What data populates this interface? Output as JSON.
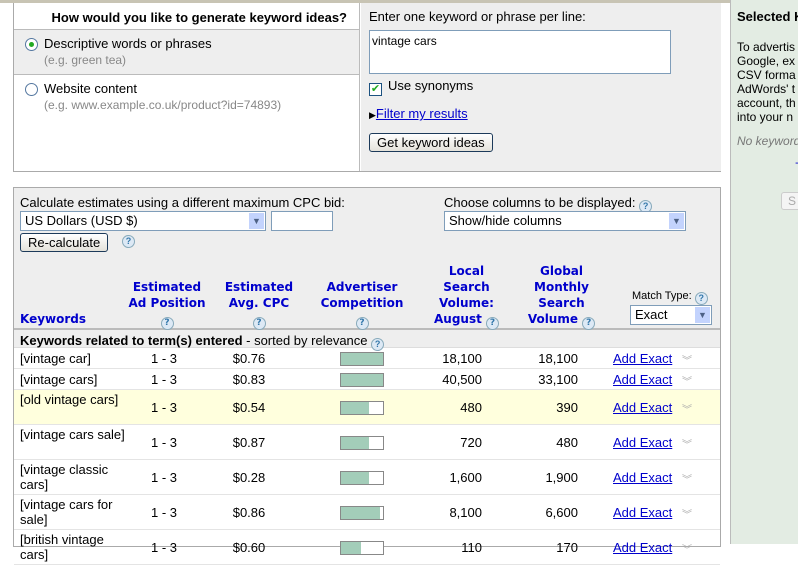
{
  "generate": {
    "title": "How would you like to generate keyword ideas?",
    "options": [
      {
        "label": "Descriptive words or phrases",
        "hint": "(e.g. green tea)",
        "selected": true
      },
      {
        "label": "Website content",
        "hint": "(e.g. www.example.co.uk/product?id=74893)",
        "selected": false
      }
    ],
    "enter_label": "Enter one keyword or phrase per line:",
    "keywords_value": "vintage cars",
    "use_synonyms": "Use synonyms",
    "use_synonyms_checked": true,
    "filter_link": "Filter my results",
    "get_ideas": "Get keyword ideas"
  },
  "estimates": {
    "cpc_label": "Calculate estimates using a different maximum CPC bid:",
    "currency": "US Dollars (USD $)",
    "bid_value": "",
    "recalc": "Re-calculate",
    "columns_label": "Choose columns to be displayed:",
    "columns_select": "Show/hide columns"
  },
  "table": {
    "headers": {
      "keywords": "Keywords",
      "position": [
        "Estimated",
        "Ad Position"
      ],
      "cpc": [
        "Estimated",
        "Avg. CPC"
      ],
      "competition": [
        "Advertiser",
        "Competition"
      ],
      "local": [
        "Local",
        "Search",
        "Volume:",
        "August"
      ],
      "global": [
        "Global",
        "Monthly",
        "Search",
        "Volume"
      ],
      "match_label": "Match Type:",
      "match_value": "Exact"
    },
    "section_bold": "Keywords related to term(s) entered",
    "section_rest": " - sorted by relevance",
    "competition_color": "#a3cdb9",
    "highlight_color": "#ffffdd",
    "rows": [
      {
        "keyword": "[vintage car]",
        "position": "1 - 3",
        "cpc": "$0.76",
        "competition": 1.0,
        "local": "18,100",
        "global": "18,100",
        "action": "Add Exact"
      },
      {
        "keyword": "[vintage cars]",
        "position": "1 - 3",
        "cpc": "$0.83",
        "competition": 1.0,
        "local": "40,500",
        "global": "33,100",
        "action": "Add Exact"
      },
      {
        "keyword": "[old vintage cars]",
        "position": "1 - 3",
        "cpc": "$0.54",
        "competition": 0.67,
        "local": "480",
        "global": "390",
        "action": "Add Exact",
        "highlighted": true
      },
      {
        "keyword": "[vintage cars sale]",
        "position": "1 - 3",
        "cpc": "$0.87",
        "competition": 0.67,
        "local": "720",
        "global": "480",
        "action": "Add Exact"
      },
      {
        "keyword": "[vintage classic cars]",
        "position": "1 - 3",
        "cpc": "$0.28",
        "competition": 0.67,
        "local": "1,600",
        "global": "1,900",
        "action": "Add Exact"
      },
      {
        "keyword": "[vintage cars for sale]",
        "position": "1 - 3",
        "cpc": "$0.86",
        "competition": 0.93,
        "local": "8,100",
        "global": "6,600",
        "action": "Add Exact"
      },
      {
        "keyword": "[british vintage cars]",
        "position": "1 - 3",
        "cpc": "$0.60",
        "competition": 0.47,
        "local": "110",
        "global": "170",
        "action": "Add Exact"
      }
    ]
  },
  "sidebar": {
    "title": "Selected K",
    "lines": [
      "To advertis",
      "Google, ex",
      "CSV forma",
      "AdWords' t",
      "account, th",
      "into your n"
    ],
    "empty": "No keyword",
    "link": "+",
    "button": "S"
  }
}
